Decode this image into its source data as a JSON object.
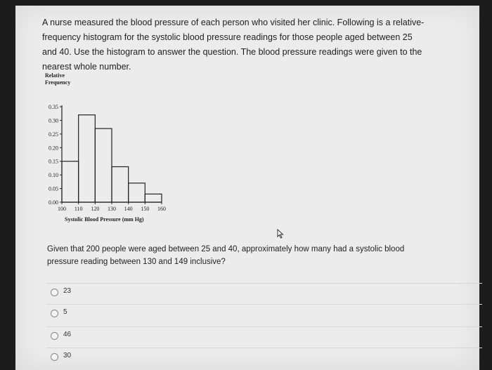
{
  "intro_lines": [
    "A nurse measured the blood pressure of each person who visited her clinic. Following is a relative-",
    "frequency histogram for the systolic blood pressure readings for those people aged between 25",
    "and 40. Use the histogram to answer the question. The blood pressure readings were given to the",
    "nearest whole number."
  ],
  "chart_data": {
    "type": "bar",
    "ylabel_lines": [
      "Relative",
      "Frequency"
    ],
    "xlabel": "Systolic Blood Pressure (mm Hg)",
    "y_ticks": [
      "0.35",
      "0.30",
      "0.25",
      "0.20",
      "0.15",
      "0.10",
      "0.05",
      "0.00"
    ],
    "x_ticks": [
      "100",
      "110",
      "120",
      "130",
      "140",
      "150",
      "160"
    ],
    "bins": [
      {
        "from": 100,
        "to": 110,
        "value": 0.15
      },
      {
        "from": 110,
        "to": 120,
        "value": 0.32
      },
      {
        "from": 120,
        "to": 130,
        "value": 0.27
      },
      {
        "from": 130,
        "to": 140,
        "value": 0.13
      },
      {
        "from": 140,
        "to": 150,
        "value": 0.07
      },
      {
        "from": 150,
        "to": 160,
        "value": 0.03
      }
    ],
    "ylim": [
      0,
      0.35
    ],
    "xlim": [
      100,
      160
    ]
  },
  "question_lines": [
    "Given that 200 people were aged between 25 and 40, approximately how many had a systolic blood",
    "pressure reading between 130 and 149 inclusive?"
  ],
  "options": [
    "23",
    "5",
    "46",
    "30"
  ]
}
